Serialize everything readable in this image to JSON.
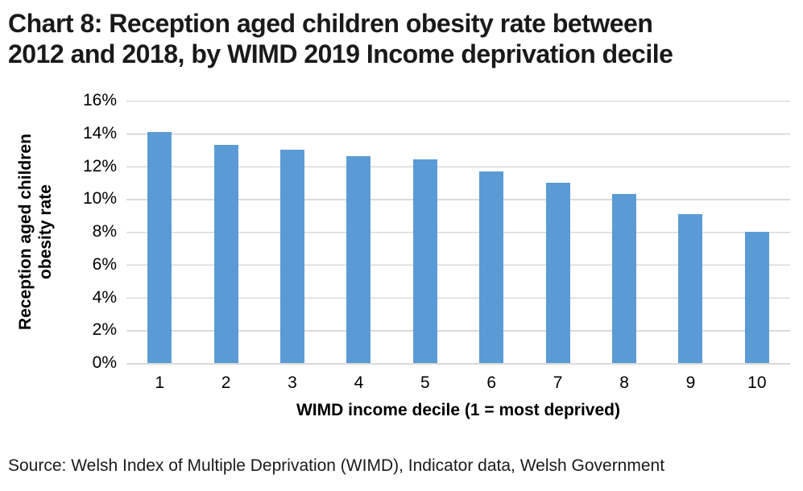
{
  "title": {
    "lines": [
      "Chart 8: Reception aged children obesity rate between",
      "2012 and 2018, by WIMD 2019 Income deprivation decile"
    ]
  },
  "chart_data": {
    "type": "bar",
    "categories": [
      "1",
      "2",
      "3",
      "4",
      "5",
      "6",
      "7",
      "8",
      "9",
      "10"
    ],
    "values": [
      14.1,
      13.3,
      13.0,
      12.6,
      12.4,
      11.7,
      11.0,
      10.3,
      9.1,
      8.0
    ],
    "title": "Chart 8: Reception aged children obesity rate between 2012 and 2018, by WIMD 2019 Income deprivation decile",
    "xlabel": "WIMD income decile (1 = most deprived)",
    "ylabel": "Reception aged children obesity rate",
    "ylabel_lines": [
      "Reception aged children",
      "obesity rate"
    ],
    "ylim": [
      0,
      16
    ],
    "ytick_step": 2,
    "yticks": [
      "16%",
      "14%",
      "12%",
      "10%",
      "8%",
      "6%",
      "4%",
      "2%",
      "0%"
    ],
    "grid": true,
    "legend_position": "none",
    "colors": {
      "bar": "#5B9BD5",
      "gridline": "#D9D9D9",
      "text": "#000000"
    }
  },
  "source": "Source: Welsh Index of Multiple Deprivation (WIMD), Indicator data, Welsh Government"
}
